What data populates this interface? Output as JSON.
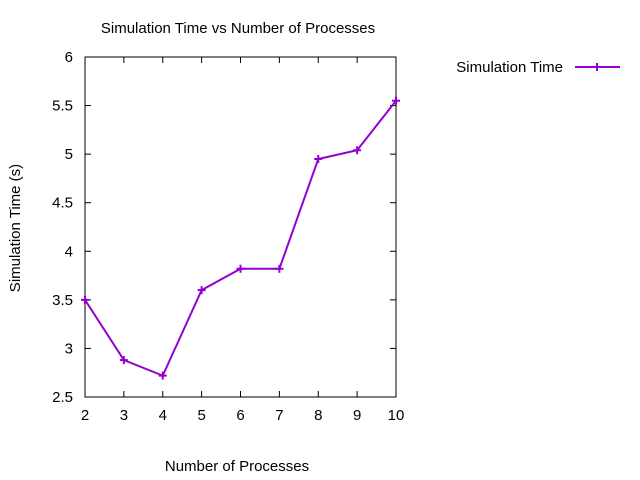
{
  "chart_data": {
    "type": "line",
    "title": "Simulation Time vs Number of Processes",
    "xlabel": "Number of Processes",
    "ylabel": "Simulation Time (s)",
    "xlim": [
      2,
      10
    ],
    "ylim": [
      2.5,
      6
    ],
    "x_ticks": [
      2,
      3,
      4,
      5,
      6,
      7,
      8,
      9,
      10
    ],
    "y_ticks": [
      2.5,
      3,
      3.5,
      4,
      4.5,
      5,
      5.5,
      6
    ],
    "y_tick_labels": [
      "2.5",
      "3",
      "3.5",
      "4",
      "4.5",
      "5",
      "5.5",
      "6"
    ],
    "grid": false,
    "legend_position": "outside-top-right",
    "marker": "plus",
    "series": [
      {
        "name": "Simulation Time",
        "color": "#9400d3",
        "x": [
          2,
          3,
          4,
          5,
          6,
          7,
          8,
          9,
          10
        ],
        "y": [
          3.5,
          2.88,
          2.72,
          3.6,
          3.82,
          3.82,
          4.95,
          5.04,
          5.55
        ]
      }
    ]
  }
}
